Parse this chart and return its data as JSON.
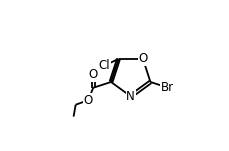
{
  "background_color": "#ffffff",
  "line_color": "#000000",
  "text_color": "#000000",
  "font_size": 8.5,
  "figsize": [
    2.29,
    1.51
  ],
  "dpi": 100,
  "xlim": [
    0.05,
    0.95
  ],
  "ylim": [
    0.08,
    0.95
  ]
}
